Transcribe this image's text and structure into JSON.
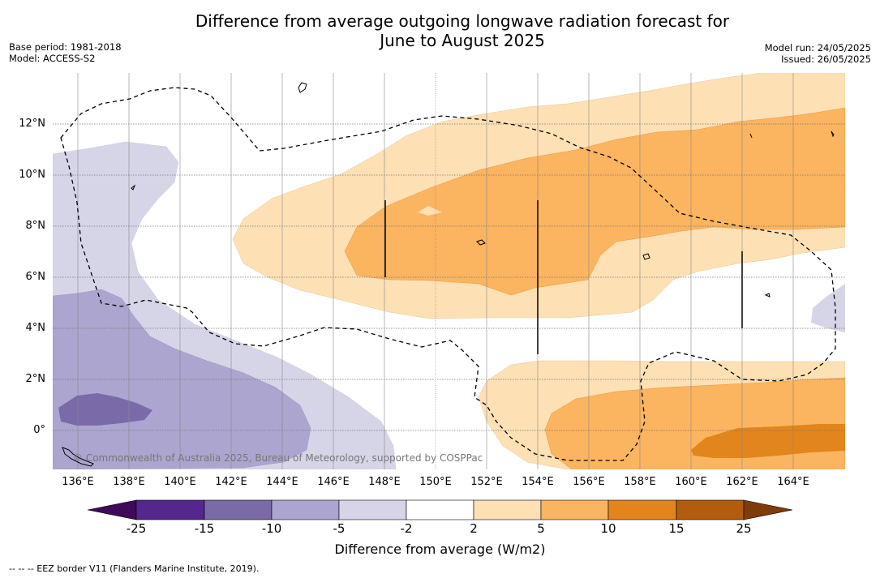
{
  "title_line1": "Difference from average outgoing longwave radiation forecast for",
  "title_line2": "June to August 2025",
  "meta_left": [
    "Base period: 1981-2018",
    "Model: ACCESS-S2"
  ],
  "meta_right": [
    "Model run: 24/05/2025",
    "Issued: 26/05/2025"
  ],
  "lat_labels": [
    "12°N",
    "10°N",
    "8°N",
    "6°N",
    "4°N",
    "2°N",
    "0°"
  ],
  "lon_labels": [
    "136°E",
    "138°E",
    "140°E",
    "142°E",
    "144°E",
    "146°E",
    "148°E",
    "150°E",
    "152°E",
    "154°E",
    "156°E",
    "158°E",
    "160°E",
    "162°E",
    "164°E"
  ],
  "copyright": "© Commonwealth of Australia 2025, Bureau of Meteorology, supported by COSPPac",
  "colorbar": {
    "ticks": [
      "-25",
      "-15",
      "-10",
      "-5",
      "-2",
      "2",
      "5",
      "10",
      "15",
      "25"
    ],
    "colors": [
      "#54278f",
      "#7b6aa8",
      "#aca5cf",
      "#d6d5e8",
      "#ffffff",
      "#fde0b4",
      "#fbb45f",
      "#e1851c",
      "#b45c0e"
    ],
    "extend_low_color": "#3f0a5a",
    "extend_high_color": "#7f3b08",
    "label": "Difference from average (W/m2)"
  },
  "footnote": "-- -- -- EEZ border V11 (Flanders Marine Institute, 2019).",
  "colors": {
    "light_purple": "#d6d5e8",
    "mid_purple": "#aca5cf",
    "dark_purple": "#7b6aa8",
    "light_orange": "#fde0b4",
    "mid_orange": "#fbb45f",
    "dark_orange": "#e1851c"
  }
}
